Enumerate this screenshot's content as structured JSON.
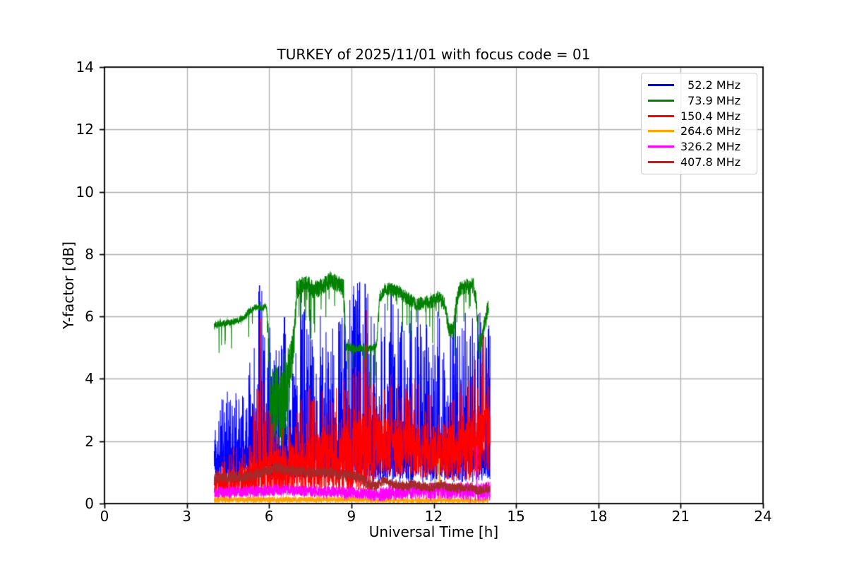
{
  "chart_data": {
    "type": "line",
    "title": "TURKEY of 2025/11/01 with focus code = 01",
    "xlabel": "Universal Time [h]",
    "ylabel": "Y-factor [dB]",
    "xlim": [
      0,
      24
    ],
    "ylim": [
      0,
      14
    ],
    "xticks": [
      0,
      3,
      6,
      9,
      12,
      15,
      18,
      21,
      24
    ],
    "yticks": [
      0,
      2,
      4,
      6,
      8,
      10,
      12,
      14
    ],
    "grid": true,
    "grid_color": "#b0b0b0",
    "axis_color": "#000000",
    "legend_position": "upper right",
    "series": [
      {
        "name": "  52.2 MHz",
        "color": "#0000ff",
        "seed": 11,
        "x_start": 4.0,
        "x_end": 14.05,
        "trend": [
          [
            4.0,
            1.1
          ],
          [
            5.0,
            1.2
          ],
          [
            6.0,
            1.3
          ],
          [
            7.0,
            1.3
          ],
          [
            8.0,
            1.3
          ],
          [
            9.0,
            1.3
          ],
          [
            10.0,
            1.2
          ],
          [
            11.0,
            1.2
          ],
          [
            12.0,
            1.2
          ],
          [
            13.0,
            1.2
          ],
          [
            14.05,
            1.3
          ]
        ],
        "band": [
          [
            4.0,
            0.55
          ],
          [
            14.05,
            0.55
          ]
        ],
        "spike_prob": 0.55,
        "spike_pow": 2.2,
        "spike_env": [
          [
            4.0,
            2.8
          ],
          [
            4.4,
            3.6
          ],
          [
            5.0,
            3.8
          ],
          [
            5.3,
            4.8
          ],
          [
            5.55,
            7.0
          ],
          [
            5.7,
            7.1
          ],
          [
            6.0,
            6.2
          ],
          [
            6.3,
            4.8
          ],
          [
            6.5,
            6.4
          ],
          [
            6.8,
            4.8
          ],
          [
            7.1,
            7.0
          ],
          [
            7.4,
            6.2
          ],
          [
            7.7,
            6.6
          ],
          [
            8.0,
            5.6
          ],
          [
            8.4,
            6.2
          ],
          [
            8.7,
            6.6
          ],
          [
            9.0,
            7.0
          ],
          [
            9.3,
            7.1
          ],
          [
            9.6,
            7.1
          ],
          [
            9.9,
            6.2
          ],
          [
            10.2,
            6.6
          ],
          [
            10.45,
            7.05
          ],
          [
            10.7,
            6.4
          ],
          [
            11.0,
            6.1
          ],
          [
            11.3,
            6.4
          ],
          [
            11.6,
            6.1
          ],
          [
            11.9,
            5.7
          ],
          [
            12.2,
            6.4
          ],
          [
            12.5,
            5.6
          ],
          [
            12.8,
            6.3
          ],
          [
            13.1,
            6.5
          ],
          [
            13.4,
            6.1
          ],
          [
            13.7,
            6.4
          ],
          [
            13.85,
            5.2
          ],
          [
            14.05,
            6.3
          ]
        ],
        "events": [
          [
            5.65,
            7.0
          ],
          [
            7.15,
            7.05
          ],
          [
            9.3,
            7.1
          ],
          [
            9.5,
            7.05
          ],
          [
            10.45,
            7.05
          ]
        ]
      },
      {
        "name": "  73.9 MHz",
        "color": "#008000",
        "seed": 22,
        "x_start": 4.0,
        "x_end": 14.0,
        "trend": [
          [
            4.0,
            5.75
          ],
          [
            4.3,
            5.78
          ],
          [
            4.6,
            5.82
          ],
          [
            4.9,
            5.88
          ],
          [
            5.1,
            6.0
          ],
          [
            5.3,
            6.18
          ],
          [
            5.5,
            6.3
          ],
          [
            5.7,
            6.28
          ],
          [
            5.9,
            6.32
          ],
          [
            5.98,
            5.2
          ],
          [
            6.05,
            2.8
          ],
          [
            6.2,
            3.4
          ],
          [
            6.35,
            3.0
          ],
          [
            6.5,
            3.3
          ],
          [
            6.65,
            3.8
          ],
          [
            6.8,
            4.4
          ],
          [
            6.92,
            5.2
          ],
          [
            7.0,
            6.85
          ],
          [
            7.2,
            7.0
          ],
          [
            7.4,
            7.05
          ],
          [
            7.6,
            6.85
          ],
          [
            7.8,
            6.9
          ],
          [
            8.0,
            7.0
          ],
          [
            8.2,
            7.15
          ],
          [
            8.4,
            7.1
          ],
          [
            8.6,
            7.0
          ],
          [
            8.72,
            6.9
          ],
          [
            8.8,
            5.05
          ],
          [
            9.1,
            4.95
          ],
          [
            9.4,
            5.0
          ],
          [
            9.7,
            4.95
          ],
          [
            9.92,
            5.1
          ],
          [
            10.02,
            6.6
          ],
          [
            10.2,
            6.9
          ],
          [
            10.5,
            6.85
          ],
          [
            10.8,
            6.75
          ],
          [
            11.1,
            6.55
          ],
          [
            11.4,
            6.4
          ],
          [
            11.7,
            6.45
          ],
          [
            12.0,
            6.5
          ],
          [
            12.2,
            6.65
          ],
          [
            12.4,
            6.4
          ],
          [
            12.55,
            5.6
          ],
          [
            12.7,
            5.5
          ],
          [
            12.82,
            6.4
          ],
          [
            12.95,
            6.9
          ],
          [
            13.2,
            6.95
          ],
          [
            13.45,
            7.0
          ],
          [
            13.55,
            6.5
          ],
          [
            13.65,
            5.0
          ],
          [
            13.75,
            5.3
          ],
          [
            13.88,
            5.9
          ],
          [
            14.0,
            6.4
          ]
        ],
        "band": [
          [
            4.0,
            0.1
          ],
          [
            5.9,
            0.1
          ],
          [
            5.98,
            0.5
          ],
          [
            6.05,
            1.2
          ],
          [
            6.5,
            1.4
          ],
          [
            6.8,
            1.0
          ],
          [
            6.95,
            0.5
          ],
          [
            7.05,
            0.28
          ],
          [
            8.7,
            0.28
          ],
          [
            8.82,
            0.12
          ],
          [
            9.95,
            0.12
          ],
          [
            10.1,
            0.22
          ],
          [
            12.4,
            0.22
          ],
          [
            12.75,
            0.25
          ],
          [
            13.5,
            0.28
          ],
          [
            14.0,
            0.25
          ]
        ],
        "dip_prob": 0.04,
        "dip_depth": 1.4,
        "events": [
          [
            6.08,
            0.45
          ]
        ]
      },
      {
        "name": "150.4 MHz",
        "color": "#ff0000",
        "seed": 33,
        "x_start": 4.0,
        "x_end": 14.05,
        "trend": [
          [
            4.0,
            0.55
          ],
          [
            4.5,
            0.6
          ],
          [
            5.0,
            0.7
          ],
          [
            5.5,
            0.8
          ],
          [
            6.0,
            0.95
          ],
          [
            6.5,
            1.05
          ],
          [
            7.0,
            1.15
          ],
          [
            7.5,
            1.25
          ],
          [
            8.0,
            1.35
          ],
          [
            8.5,
            1.35
          ],
          [
            9.0,
            1.45
          ],
          [
            9.5,
            1.6
          ],
          [
            9.8,
            1.7
          ],
          [
            10.0,
            1.75
          ],
          [
            10.5,
            1.8
          ],
          [
            11.0,
            1.75
          ],
          [
            11.5,
            1.7
          ],
          [
            12.0,
            1.65
          ],
          [
            12.5,
            1.6
          ],
          [
            13.0,
            1.7
          ],
          [
            13.5,
            1.8
          ],
          [
            14.05,
            2.1
          ]
        ],
        "band": [
          [
            4.0,
            0.4
          ],
          [
            5.0,
            0.5
          ],
          [
            6.0,
            0.7
          ],
          [
            7.0,
            0.85
          ],
          [
            8.0,
            1.0
          ],
          [
            9.0,
            1.15
          ],
          [
            9.6,
            1.3
          ],
          [
            10.0,
            0.95
          ],
          [
            10.5,
            0.95
          ],
          [
            11.0,
            0.9
          ],
          [
            12.0,
            0.85
          ],
          [
            13.0,
            0.95
          ],
          [
            13.6,
            1.1
          ],
          [
            14.05,
            1.3
          ]
        ],
        "spike_prob": 0.3,
        "spike_pow": 2.5,
        "spike_env": [
          [
            4.0,
            1.0
          ],
          [
            4.5,
            1.8
          ],
          [
            5.0,
            2.0
          ],
          [
            5.4,
            2.6
          ],
          [
            5.6,
            5.9
          ],
          [
            5.75,
            6.0
          ],
          [
            5.9,
            3.2
          ],
          [
            6.2,
            2.6
          ],
          [
            6.6,
            2.4
          ],
          [
            7.0,
            3.2
          ],
          [
            7.4,
            3.6
          ],
          [
            7.8,
            4.2
          ],
          [
            8.2,
            3.6
          ],
          [
            8.6,
            3.8
          ],
          [
            9.0,
            4.4
          ],
          [
            9.35,
            4.6
          ],
          [
            9.55,
            6.2
          ],
          [
            9.75,
            4.0
          ],
          [
            10.0,
            3.2
          ],
          [
            10.4,
            4.2
          ],
          [
            10.8,
            4.6
          ],
          [
            11.2,
            4.2
          ],
          [
            11.6,
            3.8
          ],
          [
            12.0,
            3.6
          ],
          [
            12.4,
            3.2
          ],
          [
            12.8,
            3.6
          ],
          [
            13.1,
            4.0
          ],
          [
            13.4,
            4.4
          ],
          [
            13.7,
            5.0
          ],
          [
            13.9,
            5.5
          ],
          [
            14.05,
            5.2
          ]
        ],
        "events": [
          [
            5.68,
            5.95
          ],
          [
            9.55,
            6.2
          ],
          [
            13.82,
            5.4
          ]
        ]
      },
      {
        "name": "264.6 MHz",
        "color": "#ffa500",
        "seed": 44,
        "x_start": 4.0,
        "x_end": 14.0,
        "trend": [
          [
            4.0,
            0.12
          ],
          [
            9.0,
            0.13
          ],
          [
            10.0,
            0.1
          ],
          [
            14.0,
            0.1
          ]
        ],
        "band": [
          [
            4.0,
            0.08
          ],
          [
            9.0,
            0.08
          ],
          [
            9.6,
            0.05
          ],
          [
            14.0,
            0.05
          ]
        ],
        "events": [
          [
            12.2,
            1.45
          ]
        ]
      },
      {
        "name": "326.2 MHz",
        "color": "#ff00ff",
        "seed": 55,
        "x_start": 4.0,
        "x_end": 14.05,
        "trend": [
          [
            4.0,
            0.37
          ],
          [
            5.0,
            0.38
          ],
          [
            6.0,
            0.42
          ],
          [
            6.5,
            0.45
          ],
          [
            7.0,
            0.42
          ],
          [
            8.0,
            0.38
          ],
          [
            9.0,
            0.36
          ],
          [
            9.6,
            0.3
          ],
          [
            10.0,
            0.28
          ],
          [
            10.5,
            0.35
          ],
          [
            11.0,
            0.4
          ],
          [
            11.5,
            0.38
          ],
          [
            12.0,
            0.42
          ],
          [
            12.5,
            0.38
          ],
          [
            13.0,
            0.42
          ],
          [
            13.5,
            0.38
          ],
          [
            14.05,
            0.4
          ]
        ],
        "band": [
          [
            4.0,
            0.18
          ],
          [
            9.5,
            0.18
          ],
          [
            10.3,
            0.25
          ],
          [
            14.05,
            0.3
          ]
        ],
        "events": [
          [
            13.57,
            1.85
          ]
        ]
      },
      {
        "name": "407.8 MHz",
        "color": "#a52a2a",
        "seed": 66,
        "x_start": 4.0,
        "x_end": 14.05,
        "trend": [
          [
            4.0,
            0.82
          ],
          [
            4.5,
            0.85
          ],
          [
            5.0,
            0.85
          ],
          [
            5.4,
            0.9
          ],
          [
            5.7,
            1.0
          ],
          [
            6.0,
            1.1
          ],
          [
            6.3,
            1.15
          ],
          [
            6.6,
            1.05
          ],
          [
            7.0,
            1.05
          ],
          [
            7.5,
            1.0
          ],
          [
            8.0,
            1.02
          ],
          [
            8.5,
            0.95
          ],
          [
            9.0,
            0.9
          ],
          [
            9.4,
            0.8
          ],
          [
            9.6,
            0.62
          ],
          [
            9.9,
            0.55
          ],
          [
            10.1,
            0.7
          ],
          [
            10.3,
            0.75
          ],
          [
            10.5,
            0.6
          ],
          [
            10.8,
            0.55
          ],
          [
            11.2,
            0.6
          ],
          [
            11.6,
            0.55
          ],
          [
            12.0,
            0.52
          ],
          [
            12.3,
            0.62
          ],
          [
            12.6,
            0.52
          ],
          [
            13.0,
            0.5
          ],
          [
            13.3,
            0.55
          ],
          [
            13.6,
            0.42
          ],
          [
            13.8,
            0.45
          ],
          [
            14.05,
            0.5
          ]
        ],
        "band": [
          [
            4.0,
            0.17
          ],
          [
            9.5,
            0.17
          ],
          [
            10.0,
            0.15
          ],
          [
            14.05,
            0.15
          ]
        ]
      }
    ]
  }
}
